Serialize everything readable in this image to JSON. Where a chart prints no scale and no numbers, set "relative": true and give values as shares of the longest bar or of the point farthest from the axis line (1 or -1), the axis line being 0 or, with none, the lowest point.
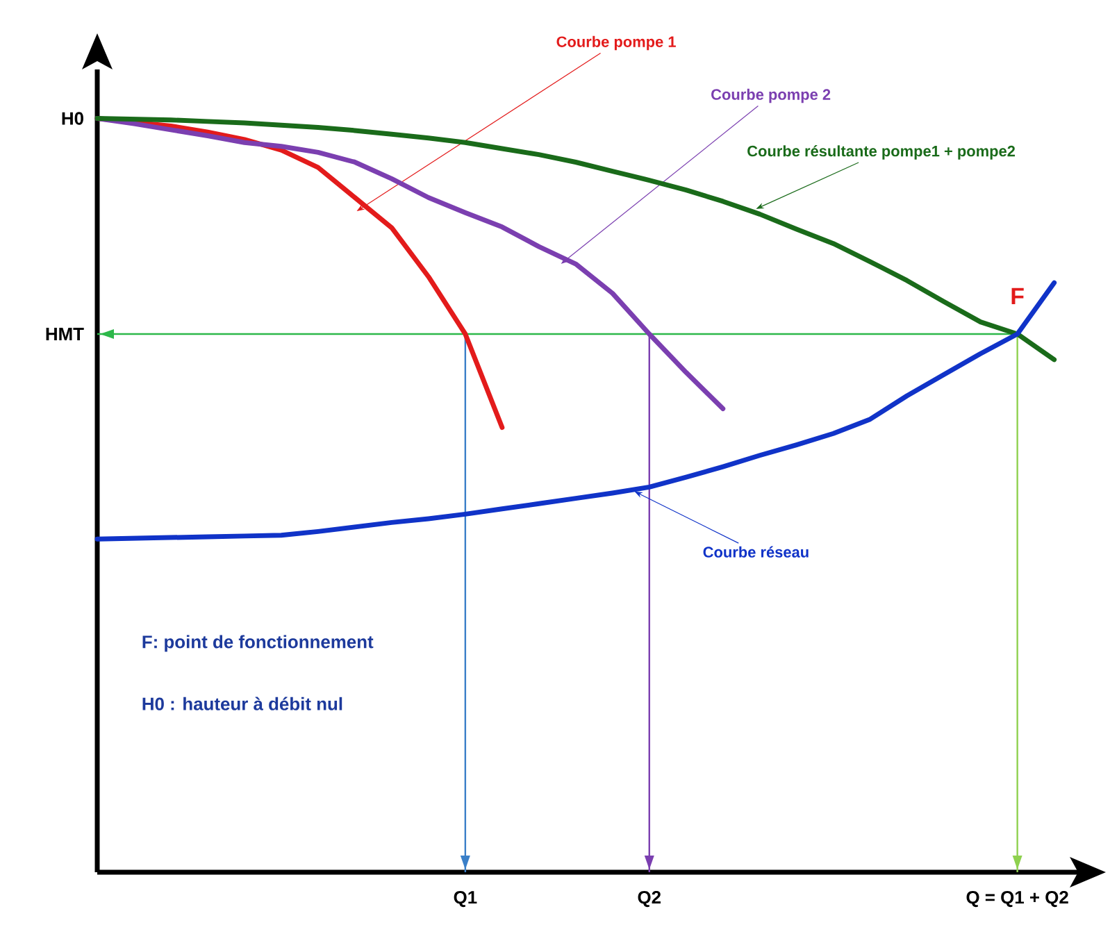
{
  "chart_data": {
    "type": "line",
    "relative": true,
    "line_style": "solid",
    "categories": [
      null,
      null,
      null,
      null,
      null,
      null,
      null,
      null,
      null,
      null,
      "Q1",
      null,
      null,
      null,
      null,
      "Q2",
      null,
      null,
      null,
      null,
      null,
      null,
      null,
      null,
      null,
      "Q = Q1 + Q2",
      null
    ],
    "series": [
      {
        "name": "Courbe pompe 1",
        "color": "#e31b1b",
        "values": [
          1,
          0.995,
          0.99,
          0.982,
          0.972,
          0.958,
          0.935,
          0.895,
          0.855,
          0.79,
          0.714,
          0.59,
          null,
          null,
          null,
          null,
          null,
          null,
          null,
          null,
          null,
          null,
          null,
          null,
          null,
          null,
          null
        ]
      },
      {
        "name": "Courbe pompe 2",
        "color": "#7b3fb0",
        "values": [
          1,
          0.993,
          0.985,
          0.977,
          0.968,
          0.963,
          0.955,
          0.942,
          0.92,
          0.895,
          0.875,
          0.856,
          0.83,
          0.807,
          0.768,
          0.714,
          0.663,
          0.615,
          null,
          null,
          null,
          null,
          null,
          null,
          null,
          null,
          null
        ]
      },
      {
        "name": "Courbe résultante pompe1 + pompe2",
        "color": "#1a6b1a",
        "values": [
          1,
          0.999,
          0.998,
          0.996,
          0.994,
          0.991,
          0.988,
          0.984,
          0.979,
          0.974,
          0.968,
          0.96,
          0.952,
          0.942,
          0.93,
          0.918,
          0.905,
          0.89,
          0.873,
          0.853,
          0.834,
          0.81,
          0.785,
          0.757,
          0.73,
          0.714,
          0.68
        ]
      },
      {
        "name": "Courbe réseau",
        "color": "#1033c8",
        "values": [
          0.442,
          0.443,
          0.444,
          0.445,
          0.446,
          0.447,
          0.452,
          0.458,
          0.464,
          0.469,
          0.475,
          0.482,
          0.489,
          0.496,
          0.503,
          0.511,
          0.524,
          0.538,
          0.553,
          0.567,
          0.582,
          0.601,
          0.632,
          0.66,
          0.688,
          0.714,
          0.782
        ]
      }
    ],
    "ref_lines": [
      {
        "axis": "y",
        "value": 0.714,
        "label": "HMT",
        "color": "#2db84a"
      },
      {
        "axis": "x",
        "value": "Q1",
        "color": "#3a7fc8"
      },
      {
        "axis": "x",
        "value": "Q2",
        "color": "#7b3fb0"
      },
      {
        "axis": "x",
        "value": "Q = Q1 + Q2",
        "color": "#8fd14f"
      }
    ],
    "annotations": [
      "H0",
      {
        "text": "F",
        "x": "Q = Q1 + Q2",
        "y": 0.714
      },
      "F: point de fonctionnement",
      "H0 : hauteur à débit nul"
    ]
  }
}
